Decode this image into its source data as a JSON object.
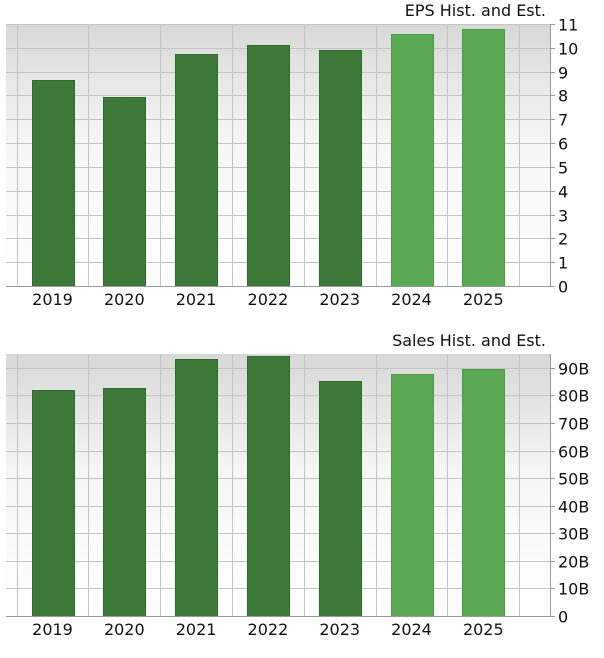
{
  "chart_data": [
    {
      "type": "bar",
      "title": "EPS Hist. and Est.",
      "categories": [
        "2019",
        "2020",
        "2021",
        "2022",
        "2023",
        "2024",
        "2025"
      ],
      "values": [
        8.65,
        7.95,
        9.75,
        10.1,
        9.9,
        10.6,
        10.8
      ],
      "estimate": [
        false,
        false,
        false,
        false,
        false,
        true,
        true
      ],
      "ylim": [
        0,
        11
      ],
      "yticks": [
        0,
        1,
        2,
        3,
        4,
        5,
        6,
        7,
        8,
        9,
        10,
        11
      ],
      "ytick_labels": [
        "0",
        "1",
        "2",
        "3",
        "4",
        "5",
        "6",
        "7",
        "8",
        "9",
        "10",
        "11"
      ],
      "grid": true,
      "colors": {
        "historical": "#3d7a39",
        "estimate": "#5aaa55",
        "historical_edge": "#2f6a2c",
        "estimate_edge": "#4a9a46"
      }
    },
    {
      "type": "bar",
      "title": "Sales Hist. and Est.",
      "categories": [
        "2019",
        "2020",
        "2021",
        "2022",
        "2023",
        "2024",
        "2025"
      ],
      "values": [
        82,
        82.6,
        93.1,
        94.2,
        85.1,
        87.9,
        89.5
      ],
      "estimate": [
        false,
        false,
        false,
        false,
        false,
        true,
        true
      ],
      "ylim": [
        0,
        95
      ],
      "yticks": [
        0,
        10,
        20,
        30,
        40,
        50,
        60,
        70,
        80,
        90
      ],
      "ytick_labels": [
        "0",
        "10B",
        "20B",
        "30B",
        "40B",
        "50B",
        "60B",
        "70B",
        "80B",
        "90B"
      ],
      "grid": true,
      "colors": {
        "historical": "#3d7a39",
        "estimate": "#5aaa55",
        "historical_edge": "#2f6a2c",
        "estimate_edge": "#4a9a46"
      }
    }
  ]
}
